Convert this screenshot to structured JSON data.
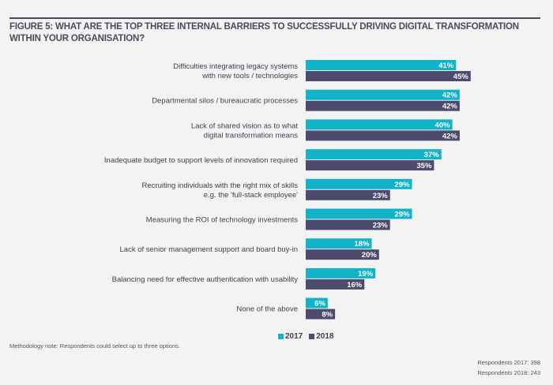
{
  "title": "FIGURE 5: WHAT ARE THE TOP THREE INTERNAL BARRIERS TO SUCCESSFULLY DRIVING DIGITAL TRANSFORMATION WITHIN YOUR ORGANISATION?",
  "legend": {
    "s2017": "2017",
    "s2018": "2018"
  },
  "note": "Methodology note: Respondents could select up to three options.",
  "respondents": {
    "r2017": "Respondents 2017: 398",
    "r2018": "Respondents 2018: 243"
  },
  "colors": {
    "s2017": "#12b3c9",
    "s2018": "#4c4a6d"
  },
  "chart_data": {
    "type": "bar",
    "orientation": "horizontal",
    "title": "FIGURE 5: WHAT ARE THE TOP THREE INTERNAL BARRIERS TO SUCCESSFULLY DRIVING DIGITAL TRANSFORMATION WITHIN YOUR ORGANISATION?",
    "unit": "%",
    "categories": [
      [
        "Difficulties integrating legacy systems",
        "with new tools / technologies"
      ],
      [
        "Departmental silos / bureaucratic processes"
      ],
      [
        "Lack of shared vision as to what",
        "digital transformation means"
      ],
      [
        "Inadequate budget to support levels of innovation required"
      ],
      [
        "Recruiting individuals with the right mix of skills",
        "e.g. the 'full-stack employee'"
      ],
      [
        "Measuring the ROI of technology investments"
      ],
      [
        "Lack of senior management support and board buy-in"
      ],
      [
        "Balancing need for effective authentication with usability"
      ],
      [
        "None of the above"
      ]
    ],
    "series": [
      {
        "name": "2017",
        "values": [
          41,
          42,
          40,
          37,
          29,
          29,
          18,
          19,
          6
        ]
      },
      {
        "name": "2018",
        "values": [
          45,
          42,
          42,
          35,
          23,
          23,
          20,
          16,
          8
        ]
      }
    ],
    "legend_position": "bottom-center",
    "grid": false
  }
}
